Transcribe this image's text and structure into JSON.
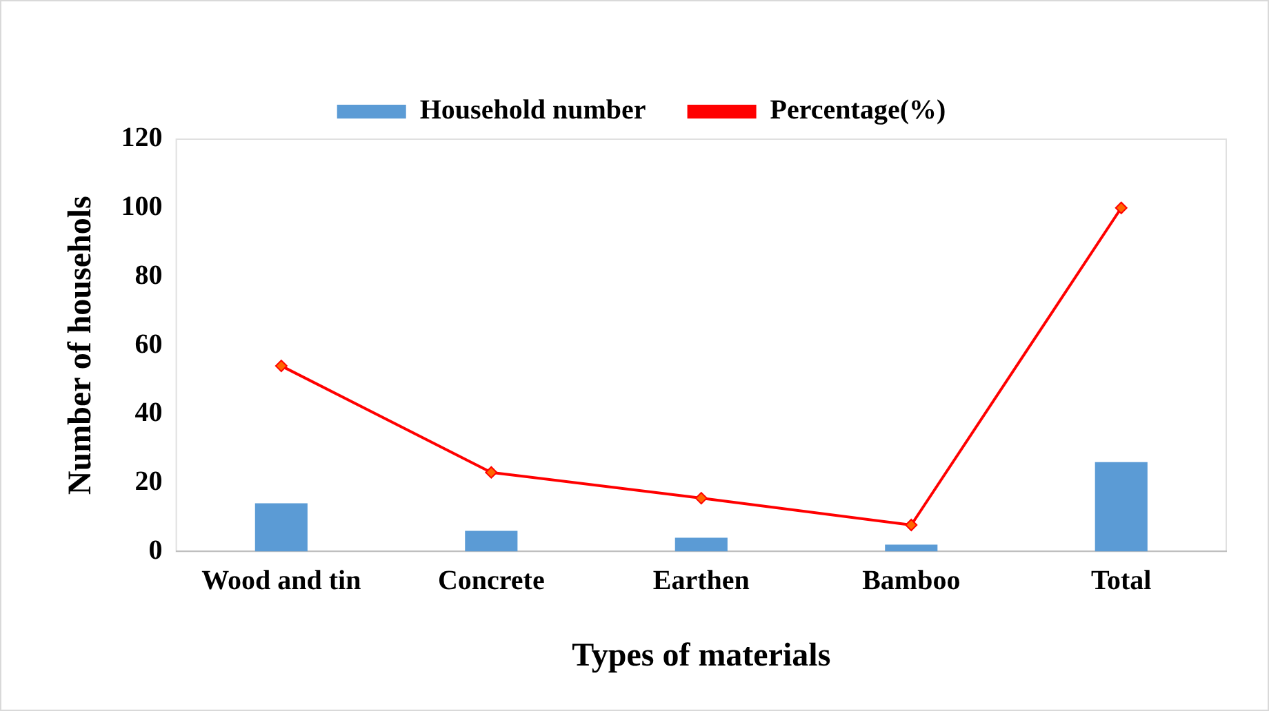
{
  "chart_data": {
    "type": "bar",
    "xlabel": "Types of materials",
    "ylabel": "Number of househols",
    "categories": [
      "Wood and tin",
      "Concrete",
      "Earthen",
      "Bamboo",
      "Total"
    ],
    "series": [
      {
        "name": "Household number",
        "color": "#5b9bd5",
        "values": [
          14,
          6,
          4,
          2,
          26
        ]
      },
      {
        "name": "Percentage(%)",
        "type": "line",
        "color": "#ff0000",
        "values": [
          54,
          23,
          15.5,
          7.7,
          100
        ]
      }
    ],
    "ylim": [
      0,
      120
    ],
    "yticks": [
      0,
      20,
      40,
      60,
      80,
      100,
      120
    ],
    "grid": false,
    "legend": "top",
    "marker": "diamond",
    "line_style": "solid"
  }
}
